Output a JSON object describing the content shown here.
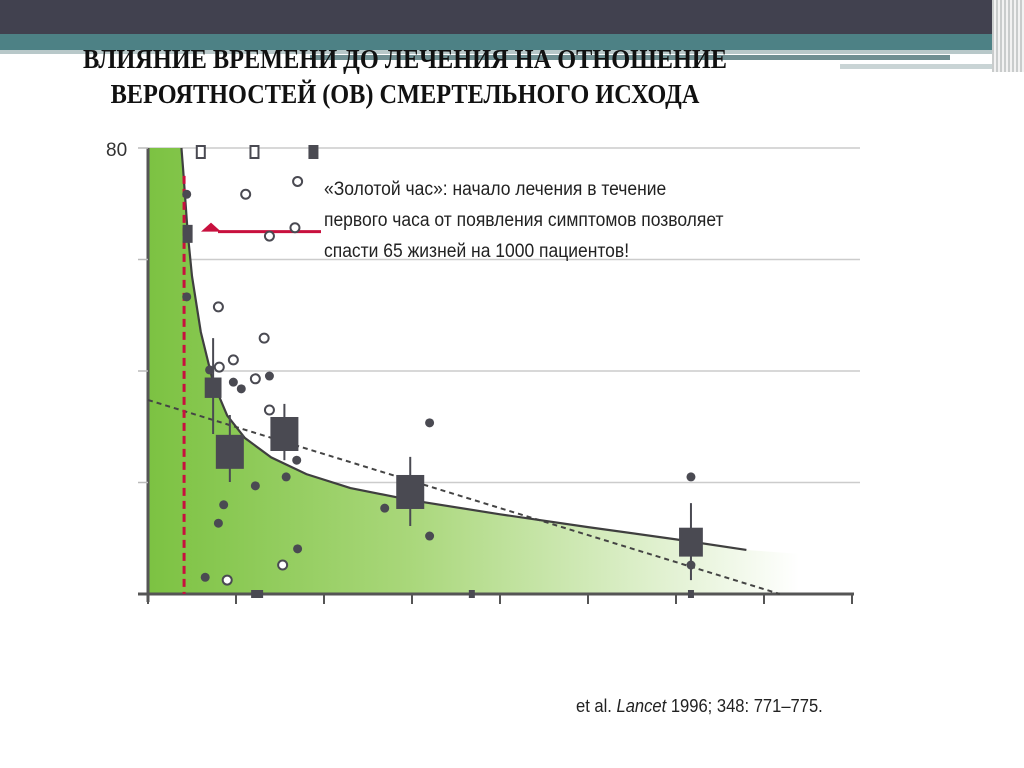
{
  "title": {
    "line1": "ВЛИЯНИЕ ВРЕМЕНИ ДО ЛЕЧЕНИЯ НА ОТНОШЕНИЕ",
    "line2": "ВЕРОЯТНОСТЕЙ (ОВ) СМЕРТЕЛЬНОГО ИСХОДА"
  },
  "annotation": {
    "line1": "«Золотой час»: начало лечения в течение",
    "line2": "первого часа от появления симптомов позволяет",
    "line3": "спасти 65 жизней на 1000 пациентов!"
  },
  "citation": {
    "prefix": "et al. ",
    "journal": "Lancet",
    "rest": " 1996; 348: 771–775."
  },
  "chart_data": {
    "type": "scatter",
    "title": "",
    "ylim": [
      0,
      80
    ],
    "xlim": [
      0,
      8
    ],
    "yticks": [
      0,
      20,
      40,
      60,
      80
    ],
    "ytick_labels": [
      "80"
    ],
    "xticks": [
      0,
      1,
      2,
      3,
      4,
      5,
      6,
      7,
      8
    ],
    "grid": true,
    "colors": {
      "fill": "#7cc242",
      "marker": "#4a4a52",
      "golden_hour": "#c8103e"
    },
    "filled_points": [
      [
        0.44,
        71.7
      ],
      [
        0.44,
        53.3
      ],
      [
        0.7,
        40.2
      ],
      [
        0.97,
        38
      ],
      [
        1.06,
        36.8
      ],
      [
        1.38,
        39.1
      ],
      [
        1.69,
        24
      ],
      [
        1.57,
        21
      ],
      [
        1.22,
        19.4
      ],
      [
        0.86,
        16
      ],
      [
        0.8,
        12.7
      ],
      [
        1.7,
        8.1
      ],
      [
        0.65,
        3
      ],
      [
        2.69,
        15.4
      ],
      [
        3.2,
        30.7
      ],
      [
        3.2,
        10.4
      ],
      [
        6.17,
        21
      ],
      [
        6.17,
        5.2
      ]
    ],
    "open_points": [
      [
        1.11,
        71.7
      ],
      [
        1.7,
        74
      ],
      [
        1.38,
        64.2
      ],
      [
        1.67,
        65.7
      ],
      [
        0.8,
        51.5
      ],
      [
        1.32,
        45.9
      ],
      [
        0.97,
        42
      ],
      [
        0.81,
        40.7
      ],
      [
        1.22,
        38.6
      ],
      [
        1.38,
        33
      ],
      [
        1.53,
        5.2
      ],
      [
        0.9,
        2.5
      ]
    ],
    "grouped_estimates": [
      {
        "x": 0.45,
        "y": 64.6,
        "low": 64.6,
        "high": 64.6,
        "weight": 0.3
      },
      {
        "x": 0.74,
        "y": 37,
        "low": 28.7,
        "high": 45.9,
        "weight": 0.6
      },
      {
        "x": 0.93,
        "y": 25.5,
        "low": 20.1,
        "high": 32.1,
        "weight": 1
      },
      {
        "x": 1.55,
        "y": 28.7,
        "low": 24,
        "high": 34.1,
        "weight": 1
      },
      {
        "x": 2.98,
        "y": 18.3,
        "low": 12.2,
        "high": 24.6,
        "weight": 1
      },
      {
        "x": 6.17,
        "y": 9.3,
        "low": 2.5,
        "high": 16.3,
        "weight": 0.85
      }
    ],
    "offscale_top": [
      {
        "x": 0.6,
        "filled": false
      },
      {
        "x": 1.21,
        "filled": false
      },
      {
        "x": 1.88,
        "filled": true
      }
    ],
    "axis_markers": [
      1.24,
      3.68,
      6.17
    ],
    "fitted_curve": [
      [
        0.38,
        80
      ],
      [
        0.4,
        76
      ],
      [
        0.45,
        65
      ],
      [
        0.5,
        57
      ],
      [
        0.6,
        47
      ],
      [
        0.74,
        38
      ],
      [
        0.9,
        32
      ],
      [
        1.1,
        28
      ],
      [
        1.4,
        24.5
      ],
      [
        1.8,
        21.5
      ],
      [
        2.3,
        19
      ],
      [
        3,
        16.8
      ],
      [
        4,
        14.3
      ],
      [
        5,
        12
      ],
      [
        6,
        9.8
      ],
      [
        6.8,
        7.9
      ]
    ],
    "linear_fit": [
      [
        0,
        34.8
      ],
      [
        7.18,
        0
      ]
    ],
    "golden_hour_x": 0.41,
    "golden_hour_arrow_y": 65
  }
}
